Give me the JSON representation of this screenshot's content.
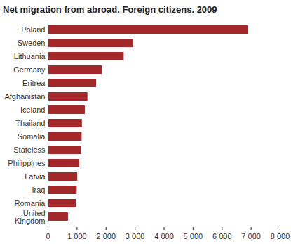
{
  "chart_data": {
    "type": "bar",
    "title": "Net migration from abroad. Foreign citizens. 2009",
    "orientation": "horizontal",
    "categories": [
      "Poland",
      "Sweden",
      "Lithuania",
      "Germany",
      "Eritrea",
      "Afghanistan",
      "Iceland",
      "Thailand",
      "Somalia",
      "Stateless",
      "Philippines",
      "Latvia",
      "Iraq",
      "Romania",
      "United Kingdom"
    ],
    "values": [
      6900,
      2950,
      2620,
      1870,
      1670,
      1370,
      1280,
      1180,
      1170,
      1160,
      1090,
      1020,
      1000,
      970,
      700
    ],
    "color": "#a3282a",
    "xlim": [
      0,
      8000
    ],
    "xticks": [
      0,
      {
        "value": 1000,
        "label": "1 000"
      },
      {
        "value": 2000,
        "label": "2 000"
      },
      {
        "value": 3000,
        "label": "3 000"
      },
      {
        "value": 4000,
        "label": "4 000"
      },
      {
        "value": 5000,
        "label": "5 000"
      },
      {
        "value": 6000,
        "label": "6 000"
      },
      {
        "value": 7000,
        "label": "7 000"
      },
      {
        "value": 8000,
        "label": "8 000"
      }
    ],
    "grid": false
  }
}
